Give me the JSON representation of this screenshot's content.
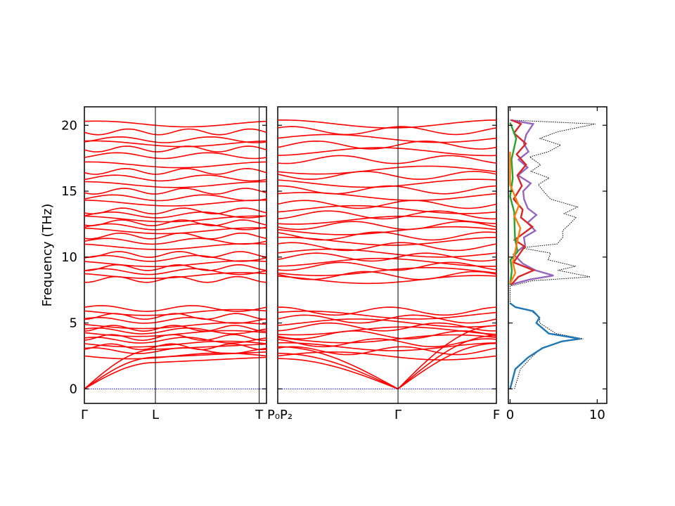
{
  "chart_data": [
    {
      "type": "line",
      "panel": "band-structure-left",
      "ylabel": "Frequency (THz)",
      "ylim": [
        -1.1,
        21.4
      ],
      "yticks": [
        0,
        5,
        10,
        15,
        20
      ],
      "ytick_labels": [
        "0",
        "5",
        "10",
        "15",
        "20"
      ],
      "x_segment_labels": [
        "Γ",
        "L",
        "T"
      ],
      "x_label_text": [
        "Γ",
        "L",
        "T"
      ],
      "x_label_fractions": [
        0,
        0.39,
        0.96
      ],
      "band_color": "#ff0000",
      "zero_line_color": "#0000ff",
      "flat_bands_thz": [
        2.5,
        2.9,
        3.2,
        3.4,
        3.7,
        3.9,
        4.2,
        4.4,
        4.6,
        4.8,
        5.2,
        5.5,
        5.8,
        6.1,
        8.3,
        8.6,
        8.9,
        9.2,
        9.5,
        9.9,
        10.2,
        10.8,
        11.2,
        11.6,
        12.0,
        12.3,
        12.6,
        12.9,
        13.2,
        13.5,
        14.1,
        14.5,
        15.0,
        15.5,
        16.0,
        16.5,
        17.0,
        17.7,
        18.2,
        18.6,
        18.9,
        19.5,
        20.1
      ],
      "acoustic_branches_end_thz": [
        2.0,
        2.4,
        3.0
      ]
    },
    {
      "type": "line",
      "panel": "band-structure-right",
      "ylim": [
        -1.1,
        21.4
      ],
      "x_label_text": [
        "P₀",
        "P₂",
        "Γ",
        "F"
      ],
      "x_label_fractions": [
        0,
        0.03,
        0.55,
        1.0
      ],
      "gamma_fraction": 0.55,
      "band_color": "#ff0000",
      "zero_line_color": "#0000ff",
      "flat_bands_thz": [
        2.5,
        2.9,
        3.2,
        3.5,
        3.8,
        4.1,
        4.4,
        4.7,
        5.0,
        5.3,
        5.6,
        5.9,
        8.3,
        8.6,
        8.9,
        9.3,
        9.6,
        10.0,
        10.3,
        10.8,
        11.2,
        11.6,
        12.0,
        12.4,
        12.8,
        13.2,
        13.6,
        14.0,
        14.6,
        15.1,
        15.6,
        16.2,
        16.6,
        17.4,
        18.0,
        18.5,
        19.0,
        19.6,
        20.1
      ]
    },
    {
      "type": "line",
      "panel": "dos",
      "xlim": [
        -0.2,
        11.1
      ],
      "xticks": [
        0,
        10
      ],
      "xtick_labels": [
        "0",
        "10"
      ],
      "ylim": [
        -1.1,
        21.4
      ],
      "series": [
        {
          "color": "#000000",
          "style": "dotted",
          "peaks": [
            [
              0.5,
              0.0
            ],
            [
              1.5,
              1.5
            ],
            [
              3.0,
              2.4
            ],
            [
              4.2,
              3.1
            ],
            [
              6.5,
              3.6
            ],
            [
              8.6,
              3.8
            ],
            [
              5.4,
              4.2
            ],
            [
              3.8,
              5.0
            ],
            [
              4.0,
              5.4
            ],
            [
              3.0,
              5.9
            ],
            [
              1.0,
              6.2
            ],
            [
              0.0,
              6.5
            ],
            [
              0.2,
              7.8
            ],
            [
              3.0,
              8.2
            ],
            [
              9.8,
              8.5
            ],
            [
              6.0,
              9.0
            ],
            [
              7.8,
              9.3
            ],
            [
              4.4,
              9.8
            ],
            [
              5.0,
              10.3
            ],
            [
              1.8,
              10.7
            ],
            [
              6.0,
              11.0
            ],
            [
              6.5,
              11.5
            ],
            [
              6.2,
              12.0
            ],
            [
              7.0,
              12.5
            ],
            [
              8.0,
              13.0
            ],
            [
              6.8,
              13.3
            ],
            [
              8.3,
              13.8
            ],
            [
              5.0,
              14.4
            ],
            [
              4.0,
              14.9
            ],
            [
              3.5,
              15.5
            ],
            [
              5.0,
              16.0
            ],
            [
              3.0,
              16.5
            ],
            [
              4.0,
              17.0
            ],
            [
              2.5,
              17.6
            ],
            [
              4.5,
              18.0
            ],
            [
              6.2,
              18.5
            ],
            [
              4.0,
              19.0
            ],
            [
              6.0,
              19.5
            ],
            [
              10.2,
              20.1
            ],
            [
              0.0,
              20.4
            ]
          ]
        },
        {
          "color": "#1f77b4",
          "style": "solid",
          "peaks": [
            [
              0.3,
              0.0
            ],
            [
              1.2,
              1.5
            ],
            [
              2.6,
              2.4
            ],
            [
              4.0,
              3.1
            ],
            [
              6.0,
              3.6
            ],
            [
              8.4,
              3.8
            ],
            [
              5.0,
              4.2
            ],
            [
              3.6,
              5.0
            ],
            [
              3.8,
              5.4
            ],
            [
              2.8,
              5.9
            ],
            [
              0.8,
              6.2
            ],
            [
              0.0,
              6.5
            ]
          ]
        },
        {
          "color": "#9467bd",
          "style": "solid",
          "peaks": [
            [
              0.3,
              7.9
            ],
            [
              2.6,
              8.3
            ],
            [
              5.0,
              8.6
            ],
            [
              3.2,
              9.0
            ],
            [
              2.0,
              9.5
            ],
            [
              1.0,
              10.2
            ],
            [
              2.2,
              10.9
            ],
            [
              1.8,
              11.5
            ],
            [
              3.0,
              12.0
            ],
            [
              2.4,
              12.6
            ],
            [
              3.6,
              13.2
            ],
            [
              2.6,
              13.7
            ],
            [
              2.0,
              14.4
            ],
            [
              1.6,
              15.0
            ],
            [
              2.6,
              15.6
            ],
            [
              1.4,
              16.2
            ],
            [
              2.6,
              16.8
            ],
            [
              1.5,
              17.4
            ],
            [
              2.4,
              18.0
            ],
            [
              1.6,
              18.6
            ],
            [
              2.2,
              19.3
            ],
            [
              3.2,
              20.1
            ],
            [
              0.3,
              20.4
            ]
          ]
        },
        {
          "color": "#d62728",
          "style": "solid",
          "peaks": [
            [
              0.2,
              7.9
            ],
            [
              1.2,
              8.5
            ],
            [
              3.2,
              9.0
            ],
            [
              1.0,
              9.6
            ],
            [
              2.2,
              10.8
            ],
            [
              0.8,
              11.3
            ],
            [
              2.6,
              12.3
            ],
            [
              1.6,
              13.0
            ],
            [
              2.0,
              13.6
            ],
            [
              1.0,
              14.4
            ],
            [
              1.8,
              15.4
            ],
            [
              1.0,
              16.2
            ],
            [
              2.0,
              17.0
            ],
            [
              1.2,
              17.8
            ],
            [
              2.4,
              18.6
            ],
            [
              1.0,
              19.4
            ],
            [
              1.6,
              20.1
            ],
            [
              0.2,
              20.4
            ]
          ]
        },
        {
          "color": "#2ca02c",
          "style": "solid",
          "peaks": [
            [
              0.2,
              7.9
            ],
            [
              0.8,
              9.0
            ],
            [
              0.6,
              9.8
            ],
            [
              1.2,
              10.4
            ],
            [
              0.6,
              11.4
            ],
            [
              0.8,
              12.4
            ],
            [
              1.0,
              13.4
            ],
            [
              0.4,
              14.6
            ],
            [
              0.8,
              16.0
            ],
            [
              0.4,
              17.4
            ],
            [
              0.8,
              19.0
            ],
            [
              0.4,
              20.2
            ]
          ]
        },
        {
          "color": "#ff7f0e",
          "style": "solid",
          "peaks": [
            [
              0.2,
              8.0
            ],
            [
              1.0,
              8.8
            ],
            [
              0.4,
              9.6
            ],
            [
              1.4,
              12.2
            ],
            [
              1.0,
              13.1
            ],
            [
              1.6,
              13.9
            ],
            [
              0.4,
              15.5
            ],
            [
              0.2,
              18.0
            ]
          ]
        }
      ]
    }
  ]
}
